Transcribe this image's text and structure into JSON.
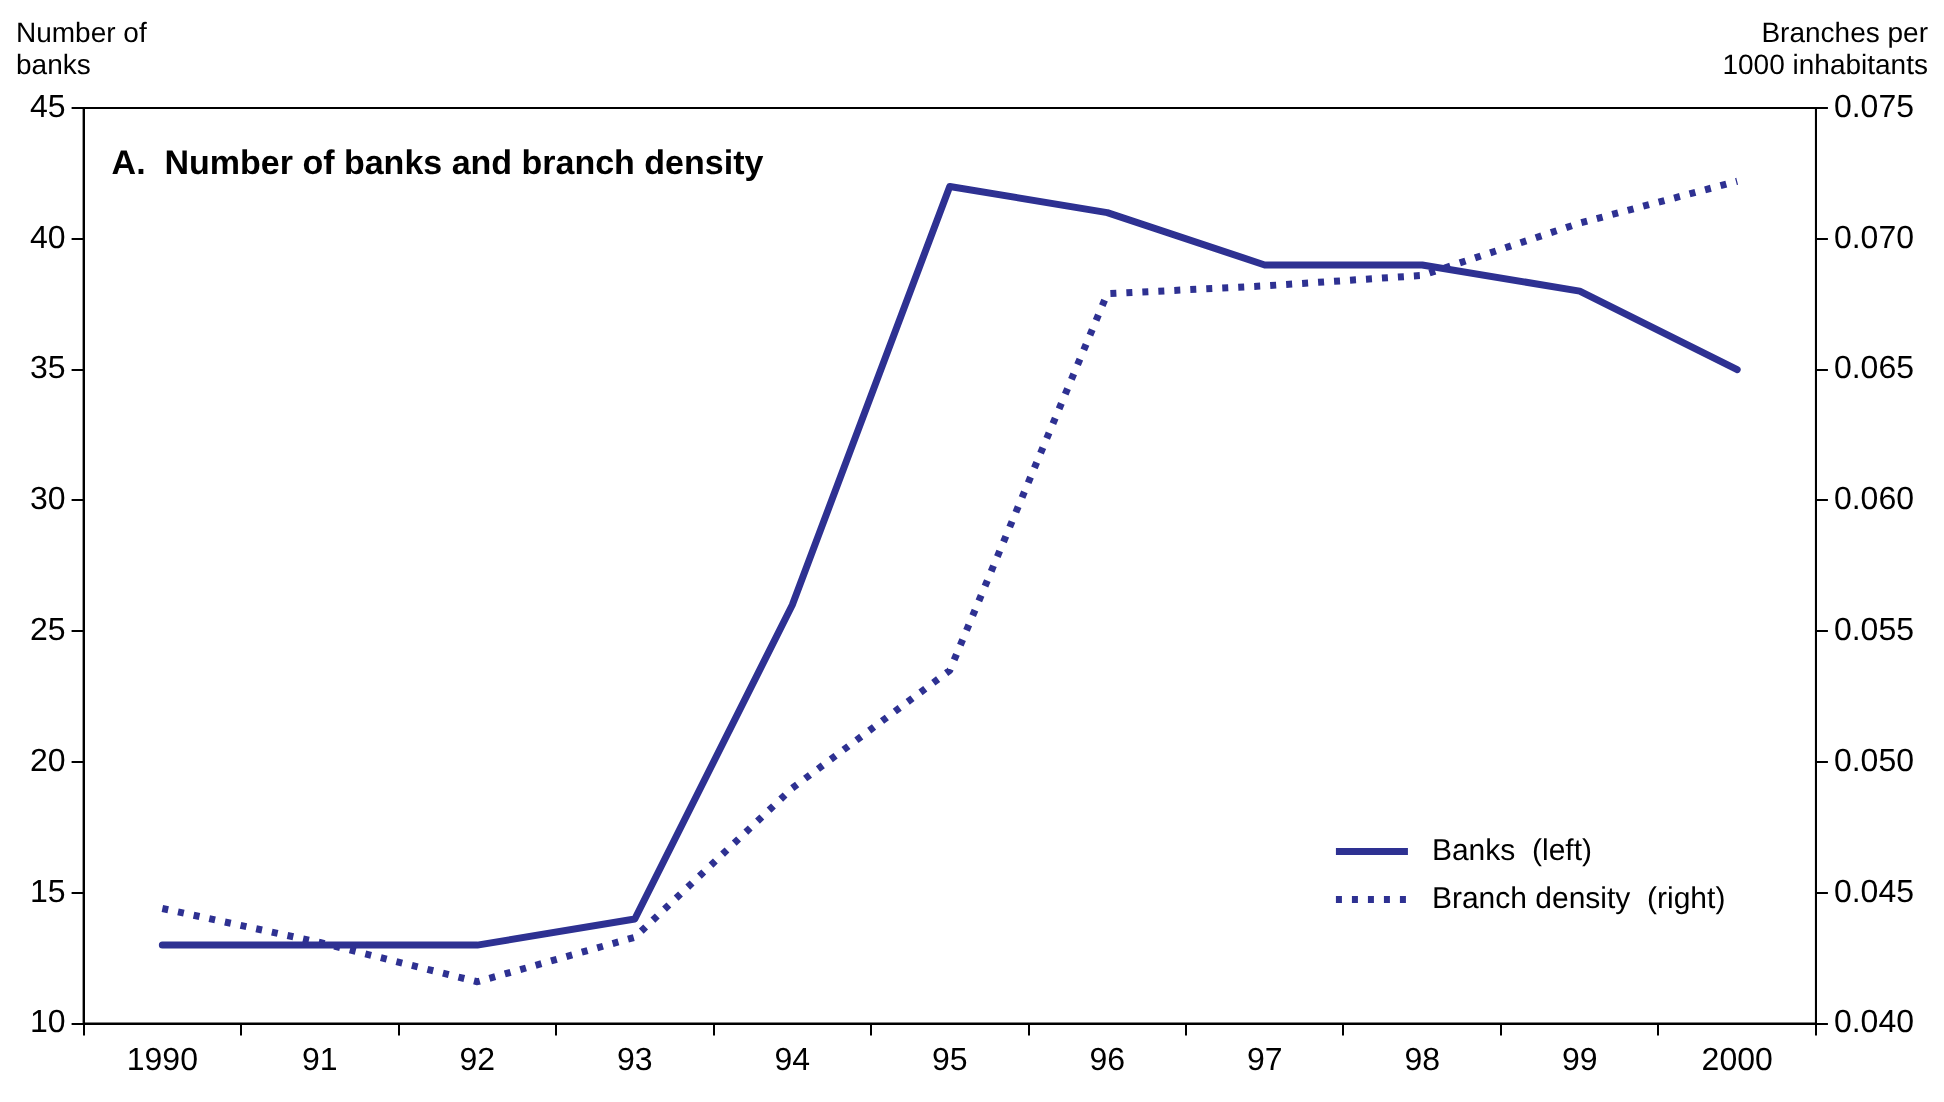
{
  "chart_data": {
    "type": "line",
    "title": "A.  Number of banks and branch density",
    "ylabel": "Number of banks",
    "y2label": "Branches per 1000 inhabitants",
    "categories": [
      "1990",
      "91",
      "92",
      "93",
      "94",
      "95",
      "96",
      "97",
      "98",
      "99",
      "2000"
    ],
    "series": [
      {
        "name": "Banks  (left)",
        "color": "#2e3192",
        "values": [
          13,
          13,
          13,
          14,
          26,
          42,
          41,
          39,
          39,
          38,
          35
        ],
        "line_style": "solid"
      },
      {
        "name": "Branch density  (right)",
        "color": "#2e3192",
        "axis": "y2",
        "values": [
          0.0444,
          0.0431,
          0.0416,
          0.0433,
          0.049,
          0.0535,
          0.0679,
          0.0682,
          0.0686,
          0.0706,
          0.0722
        ],
        "line_style": "dotted"
      }
    ],
    "ylim": [
      10,
      45
    ],
    "yticks": [
      10,
      15,
      20,
      25,
      30,
      35,
      40,
      45
    ],
    "y2lim": [
      0.04,
      0.075
    ],
    "y2ticks": [
      {
        "value": 0.04,
        "label": "0.040"
      },
      {
        "value": 0.045,
        "label": "0.045"
      },
      {
        "value": 0.05,
        "label": "0.050"
      },
      {
        "value": 0.055,
        "label": "0.055"
      },
      {
        "value": 0.06,
        "label": "0.060"
      },
      {
        "value": 0.065,
        "label": "0.065"
      },
      {
        "value": 0.07,
        "label": "0.070"
      },
      {
        "value": 0.075,
        "label": "0.075"
      }
    ],
    "grid": false,
    "legend": "bottom right",
    "marker": "none"
  }
}
